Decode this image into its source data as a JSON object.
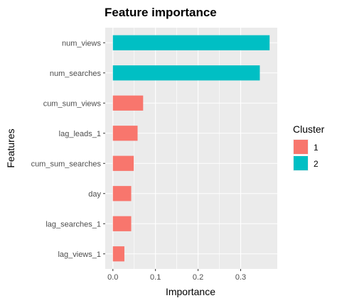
{
  "chart_data": {
    "type": "bar",
    "orientation": "horizontal",
    "title": "Feature importance",
    "xlabel": "Importance",
    "ylabel": "Features",
    "categories": [
      "num_views",
      "num_searches",
      "cum_sum_views",
      "lag_leads_1",
      "cum_sum_searches",
      "day",
      "lag_searches_1",
      "lag_views_1"
    ],
    "values": [
      0.368,
      0.345,
      0.071,
      0.058,
      0.049,
      0.043,
      0.043,
      0.027
    ],
    "cluster": [
      "2",
      "2",
      "1",
      "1",
      "1",
      "1",
      "1",
      "1"
    ],
    "xlim": [
      -0.018,
      0.386
    ],
    "xticks": [
      "0.0",
      "0.1",
      "0.2",
      "0.3"
    ],
    "xtick_values": [
      0,
      0.1,
      0.2,
      0.3
    ],
    "grid": true,
    "legend": {
      "title": "Cluster",
      "position": "right",
      "items": [
        {
          "label": "1",
          "color": "#F8766D"
        },
        {
          "label": "2",
          "color": "#00BFC4"
        }
      ]
    },
    "panel_background": "#EBEBEB",
    "gridline_color": "#FFFFFF"
  }
}
